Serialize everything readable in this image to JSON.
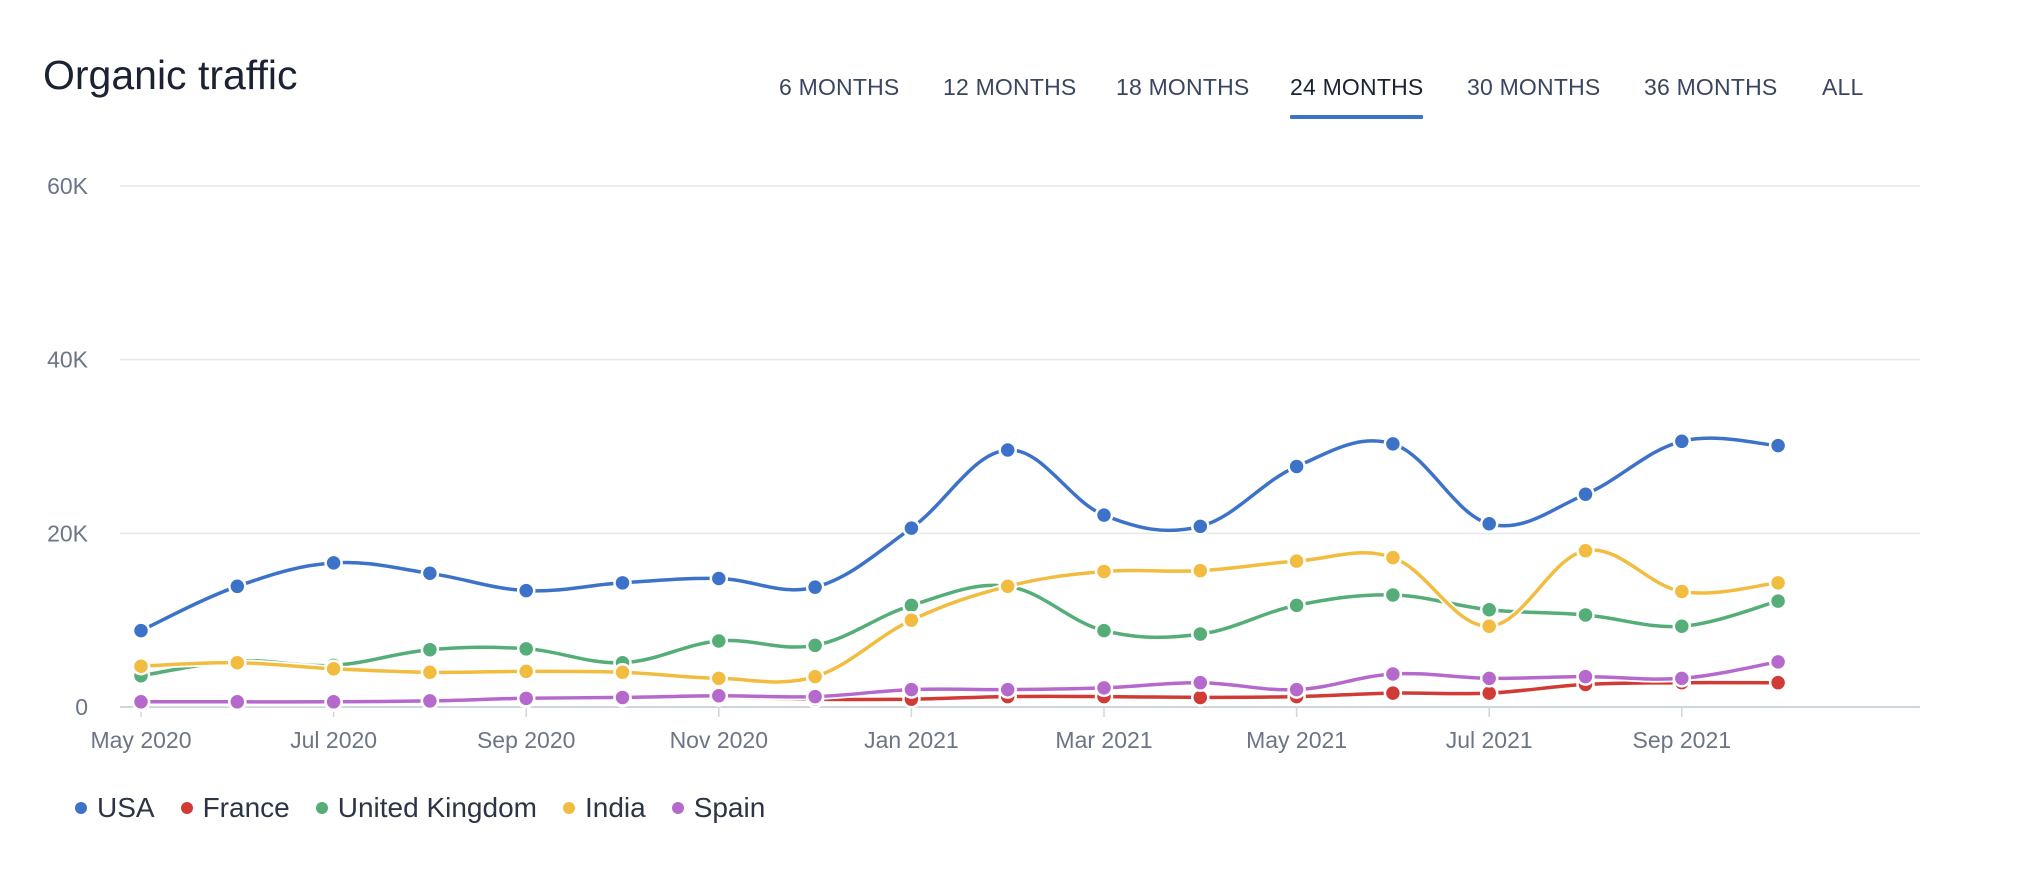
{
  "title": "Organic traffic",
  "tabs": [
    {
      "label": "6 MONTHS",
      "active": false
    },
    {
      "label": "12 MONTHS",
      "active": false
    },
    {
      "label": "18 MONTHS",
      "active": false
    },
    {
      "label": "24 MONTHS",
      "active": true
    },
    {
      "label": "30 MONTHS",
      "active": false
    },
    {
      "label": "36 MONTHS",
      "active": false
    },
    {
      "label": "ALL",
      "active": false
    }
  ],
  "accent_color": "#3d72c9",
  "chart_data": {
    "type": "line",
    "title": "Organic traffic",
    "xlabel": "",
    "ylabel": "",
    "ylim": [
      0,
      60000
    ],
    "yticks": [
      0,
      20000,
      40000,
      60000
    ],
    "ytick_labels": [
      "0",
      "20K",
      "40K",
      "60K"
    ],
    "x": [
      "2020-05",
      "2020-06",
      "2020-07",
      "2020-08",
      "2020-09",
      "2020-10",
      "2020-11",
      "2020-12",
      "2021-01",
      "2021-02",
      "2021-03",
      "2021-04",
      "2021-05",
      "2021-06",
      "2021-07",
      "2021-08",
      "2021-09",
      "2021-10"
    ],
    "xtick_indices": [
      0,
      2,
      4,
      6,
      8,
      10,
      12,
      14,
      16
    ],
    "xtick_labels": [
      "May 2020",
      "Jul 2020",
      "Sep 2020",
      "Nov 2020",
      "Jan 2021",
      "Mar 2021",
      "May 2021",
      "Jul 2021",
      "Sep 2021"
    ],
    "grid": true,
    "legend_position": "bottom-left",
    "series": [
      {
        "name": "USA",
        "color": "#3d72c9",
        "values": [
          8800,
          13900,
          16600,
          15400,
          13400,
          14300,
          14800,
          13800,
          20600,
          29600,
          22100,
          20800,
          27700,
          30300,
          21100,
          24500,
          30600,
          30100
        ]
      },
      {
        "name": "France",
        "color": "#d13b35",
        "values": [
          500,
          500,
          500,
          700,
          900,
          1000,
          1100,
          900,
          900,
          1200,
          1200,
          1100,
          1200,
          1600,
          1600,
          2600,
          2800,
          2800
        ]
      },
      {
        "name": "United Kingdom",
        "color": "#55ad78",
        "values": [
          3600,
          5300,
          4800,
          6600,
          6700,
          5100,
          7600,
          7100,
          11700,
          13900,
          8800,
          8400,
          11700,
          12900,
          11200,
          10600,
          9300,
          12200
        ]
      },
      {
        "name": "India",
        "color": "#f2bc40",
        "values": [
          4700,
          5100,
          4400,
          4000,
          4100,
          4000,
          3300,
          3500,
          10000,
          13900,
          15600,
          15700,
          16800,
          17200,
          9300,
          18000,
          13300,
          14300
        ]
      },
      {
        "name": "Spain",
        "color": "#b569cc",
        "values": [
          600,
          600,
          600,
          700,
          1000,
          1100,
          1300,
          1200,
          2000,
          2000,
          2200,
          2800,
          2000,
          3800,
          3300,
          3500,
          3300,
          5200
        ]
      }
    ]
  }
}
